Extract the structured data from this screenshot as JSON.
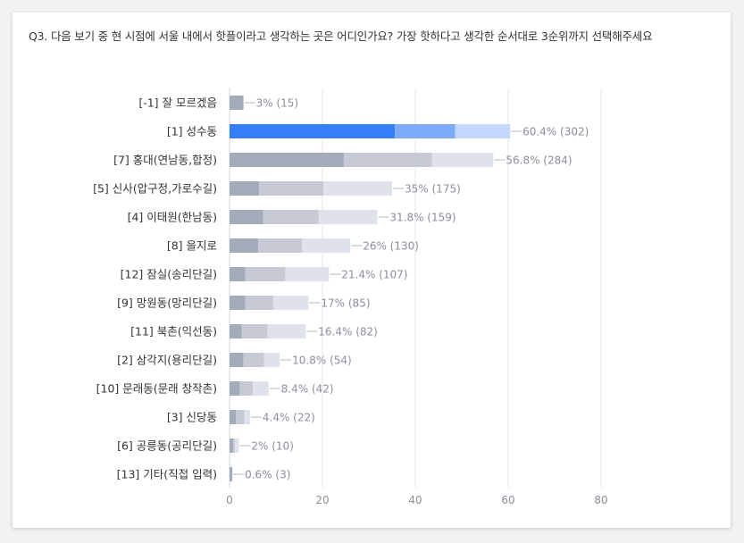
{
  "question": "Q3. 다음 보기 중 현 시점에 서울 내에서 핫플이라고 생각하는 곳은 어디인가요? 가장 핫하다고 생각한 순서대로 3순위까지 선택해주세요",
  "colors": {
    "default": [
      "#a4abbb",
      "#c5cad4",
      "#dfe2e8"
    ],
    "highlight": [
      "#3580f9",
      "#7eabf9",
      "#c3d7fc"
    ],
    "grid": "#e6e7ea",
    "connector": "#b0b4bc"
  },
  "chart_data": {
    "type": "bar",
    "orientation": "horizontal",
    "stacked": true,
    "xlim": [
      0,
      80
    ],
    "xticks": [
      "0",
      "20",
      "40",
      "60",
      "80"
    ],
    "highlight_index": 1,
    "categories": [
      "[-1] 잘 모르겠음",
      "[1] 성수동",
      "[7] 홍대(연남동,합정)",
      "[5] 신사(압구정,가로수길)",
      "[4] 이태원(한남동)",
      "[8] 을지로",
      "[12] 잠실(송리단길)",
      "[9] 망원동(망리단길)",
      "[11] 북촌(익선동)",
      "[2] 삼각지(용리단길)",
      "[10] 문래동(문래 창작촌)",
      "[3] 신당동",
      "[6] 공릉동(공리단길)",
      "[13] 기타(직접 입력)"
    ],
    "totals": [
      3,
      60.4,
      56.8,
      35,
      31.8,
      26,
      21.4,
      17,
      16.4,
      10.8,
      8.4,
      4.4,
      2,
      0.6
    ],
    "value_labels": [
      "3% (15)",
      "60.4% (302)",
      "56.8% (284)",
      "35% (175)",
      "31.8% (159)",
      "26% (130)",
      "21.4% (107)",
      "17% (85)",
      "16.4% (82)",
      "10.8% (54)",
      "8.4% (42)",
      "4.4% (22)",
      "2% (10)",
      "0.6% (3)"
    ],
    "segments": [
      [
        3,
        0,
        0
      ],
      [
        35.6,
        13,
        11.8
      ],
      [
        24.6,
        19,
        13.2
      ],
      [
        6.4,
        13.8,
        14.8
      ],
      [
        7.2,
        12,
        12.6
      ],
      [
        6.2,
        9.4,
        10.4
      ],
      [
        3.4,
        8.6,
        9.4
      ],
      [
        3.4,
        6,
        7.6
      ],
      [
        2.6,
        5.6,
        8.2
      ],
      [
        3,
        4.4,
        3.4
      ],
      [
        2.2,
        2.8,
        3.4
      ],
      [
        1.4,
        1.8,
        1.2
      ],
      [
        0.8,
        0.4,
        0.8
      ],
      [
        0.6,
        0,
        0
      ]
    ]
  }
}
